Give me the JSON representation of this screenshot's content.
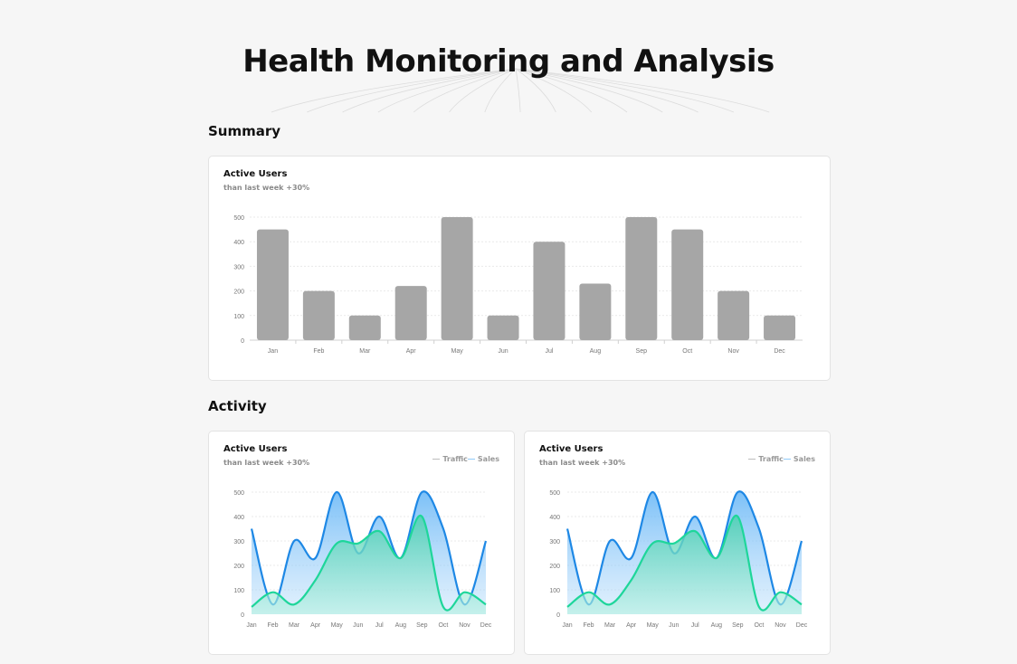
{
  "page": {
    "title": "Health Monitoring and Analysis"
  },
  "sections": {
    "summary": "Summary",
    "activity": "Activity"
  },
  "summary_card": {
    "title": "Active Users",
    "subtitle": "than last week +30%"
  },
  "activity_cards": [
    {
      "title": "Active Users",
      "subtitle": "than last week +30%",
      "legend": [
        "Traffic",
        "Sales"
      ]
    },
    {
      "title": "Active Users",
      "subtitle": "than last week +30%",
      "legend": [
        "Traffic",
        "Sales"
      ]
    }
  ],
  "colors": {
    "bar": "#a6a6a6",
    "traffic": "#1e88e5",
    "sales": "#1ed69a",
    "legend_line": "#bdbdbd",
    "grid": "#e9e9e9"
  },
  "chart_data": [
    {
      "type": "bar",
      "categories": [
        "Jan",
        "Feb",
        "Mar",
        "Apr",
        "May",
        "Jun",
        "Jul",
        "Aug",
        "Sep",
        "Oct",
        "Nov",
        "Dec"
      ],
      "values": [
        450,
        200,
        100,
        220,
        500,
        100,
        400,
        230,
        500,
        450,
        200,
        100
      ],
      "title": "Active Users",
      "subtitle": "than last week +30%",
      "yticks": [
        0,
        100,
        200,
        300,
        400,
        500
      ],
      "ylim": [
        0,
        500
      ],
      "grid": true
    },
    {
      "type": "area",
      "categories": [
        "Jan",
        "Feb",
        "Mar",
        "Apr",
        "May",
        "Jun",
        "Jul",
        "Aug",
        "Sep",
        "Oct",
        "Nov",
        "Dec"
      ],
      "series": [
        {
          "name": "Traffic",
          "values": [
            350,
            40,
            300,
            230,
            500,
            250,
            400,
            230,
            500,
            350,
            40,
            300
          ]
        },
        {
          "name": "Sales",
          "values": [
            30,
            90,
            40,
            140,
            290,
            290,
            340,
            230,
            400,
            30,
            90,
            40
          ]
        }
      ],
      "title": "Active Users",
      "subtitle": "than last week +30%",
      "yticks": [
        0,
        100,
        200,
        300,
        400,
        500
      ],
      "ylim": [
        0,
        500
      ],
      "legend": "top-right",
      "grid": true
    },
    {
      "type": "area",
      "categories": [
        "Jan",
        "Feb",
        "Mar",
        "Apr",
        "May",
        "Jun",
        "Jul",
        "Aug",
        "Sep",
        "Oct",
        "Nov",
        "Dec"
      ],
      "series": [
        {
          "name": "Traffic",
          "values": [
            350,
            40,
            300,
            230,
            500,
            250,
            400,
            230,
            500,
            350,
            40,
            300
          ]
        },
        {
          "name": "Sales",
          "values": [
            30,
            90,
            40,
            140,
            290,
            290,
            340,
            230,
            400,
            30,
            90,
            40
          ]
        }
      ],
      "title": "Active Users",
      "subtitle": "than last week +30%",
      "yticks": [
        0,
        100,
        200,
        300,
        400,
        500
      ],
      "ylim": [
        0,
        500
      ],
      "legend": "top-right",
      "grid": true
    }
  ]
}
